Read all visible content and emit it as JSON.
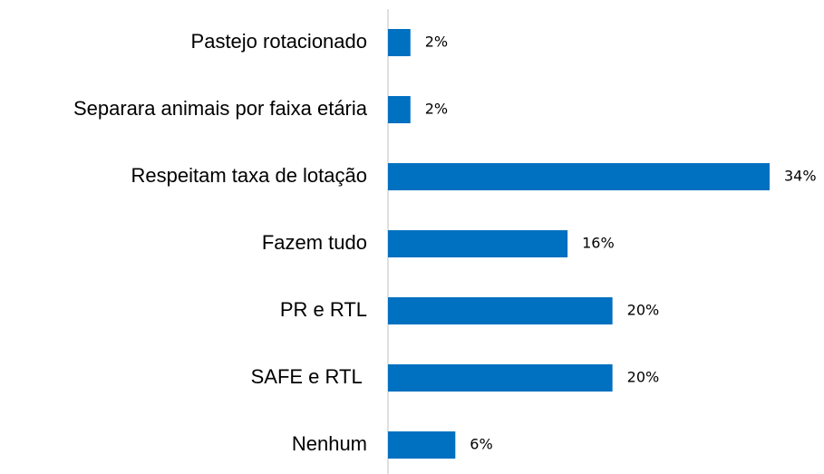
{
  "chart_data": {
    "type": "bar",
    "orientation": "horizontal",
    "categories": [
      "Pastejo rotacionado",
      "Separara animais por faixa etária",
      "Respeitam taxa de lotação",
      "Fazem tudo",
      "PR e RTL",
      "SAFE e RTL ",
      "Nenhum"
    ],
    "values": [
      2,
      2,
      34,
      16,
      20,
      20,
      6
    ],
    "value_labels": [
      "2%",
      "2%",
      "34%",
      "16%",
      "20%",
      "20%",
      "6%"
    ],
    "color": "#0070c0"
  }
}
